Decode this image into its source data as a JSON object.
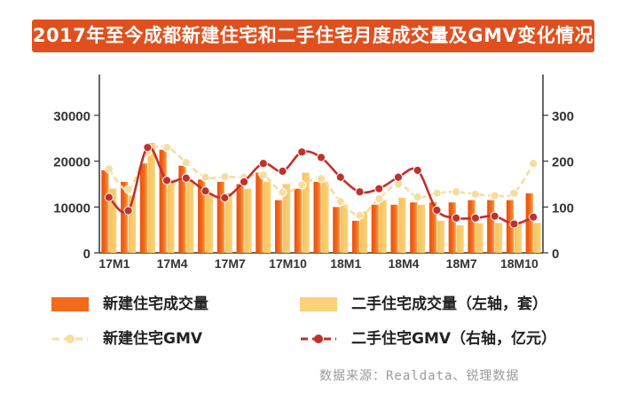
{
  "title": "2017年至今成都新建住宅和二手住宅月度成交量及GMV变化情况",
  "source": "数据来源：Realdata、锐理数据",
  "colors": {
    "title_bg": "#e0501f",
    "new_volume_bar": "#f26a1b",
    "second_volume_bar": "#fbd27a",
    "new_gmv_line": "#f8dca0",
    "second_gmv_line": "#c0312b"
  },
  "legend": [
    {
      "key": "new_volume",
      "label": "新建住宅成交量"
    },
    {
      "key": "second_volume",
      "label": "二手住宅成交量（左轴，套）"
    },
    {
      "key": "new_gmv",
      "label": "新建住宅GMV"
    },
    {
      "key": "second_gmv",
      "label": "二手住宅GMV（右轴，亿元）"
    }
  ],
  "chart_data": {
    "type": "bar",
    "title": "2017年至今成都新建住宅和二手住宅月度成交量及GMV变化情况",
    "x_tick_labels": [
      "17M1",
      "17M4",
      "17M7",
      "17M10",
      "18M1",
      "18M4",
      "18M7",
      "18M10"
    ],
    "categories": [
      "17M1",
      "17M2",
      "17M3",
      "17M4",
      "17M5",
      "17M6",
      "17M7",
      "17M8",
      "17M9",
      "17M10",
      "17M11",
      "17M12",
      "18M1",
      "18M2",
      "18M3",
      "18M4",
      "18M5",
      "18M6",
      "18M7",
      "18M8",
      "18M9",
      "18M10",
      "18M11"
    ],
    "left_axis": {
      "ylim": [
        0,
        30000
      ],
      "ticks": [
        0,
        10000,
        20000,
        30000
      ]
    },
    "right_axis": {
      "ylim": [
        0,
        300
      ],
      "ticks": [
        0,
        100,
        200,
        300
      ]
    },
    "grid": false,
    "legend_position": "bottom",
    "series": [
      {
        "name": "新建住宅成交量",
        "type": "bar",
        "axis": "left",
        "values": [
          18000,
          15500,
          19500,
          22500,
          19000,
          16000,
          15500,
          15000,
          17500,
          11500,
          14000,
          15500,
          10000,
          7000,
          10500,
          10500,
          11000,
          11000,
          11000,
          11500,
          11500,
          11500,
          13000
        ]
      },
      {
        "name": "二手住宅成交量",
        "type": "bar",
        "axis": "left",
        "values": [
          14000,
          12500,
          24000,
          16000,
          16000,
          13000,
          13000,
          14000,
          15500,
          15000,
          17500,
          15500,
          10500,
          9000,
          11500,
          12000,
          10500,
          7000,
          6000,
          6500,
          6500,
          6500,
          6500
        ]
      },
      {
        "name": "新建住宅GMV",
        "type": "line",
        "axis": "right",
        "values": [
          183,
          138,
          220,
          230,
          197,
          165,
          166,
          165,
          170,
          132,
          148,
          162,
          112,
          82,
          118,
          150,
          122,
          130,
          133,
          128,
          125,
          130,
          195
        ]
      },
      {
        "name": "二手住宅GMV",
        "type": "line",
        "axis": "right",
        "values": [
          121,
          92,
          230,
          158,
          163,
          135,
          120,
          155,
          195,
          178,
          220,
          208,
          165,
          133,
          140,
          165,
          180,
          93,
          76,
          76,
          80,
          63,
          78
        ]
      }
    ]
  }
}
